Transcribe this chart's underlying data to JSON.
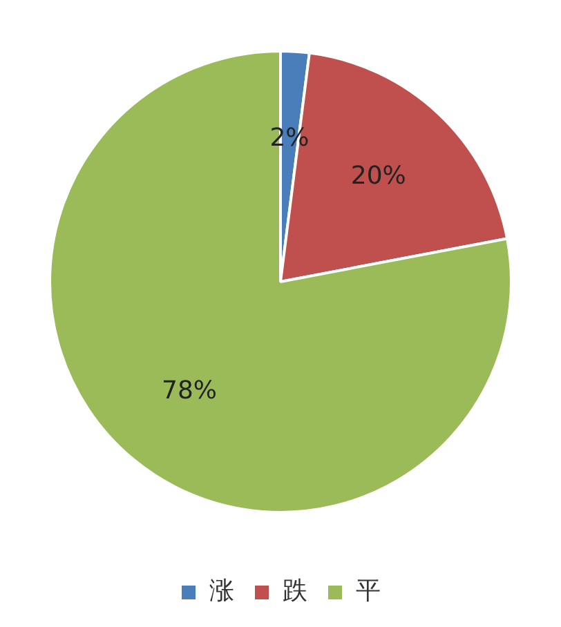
{
  "chart_data": {
    "type": "pie",
    "categories": [
      "涨",
      "跌",
      "平"
    ],
    "values": [
      2,
      20,
      78
    ],
    "colors": [
      "#4a7ebb",
      "#c0504d",
      "#9bbb59"
    ],
    "value_labels": [
      "2%",
      "20%",
      "78%"
    ],
    "legend": "bottom"
  }
}
